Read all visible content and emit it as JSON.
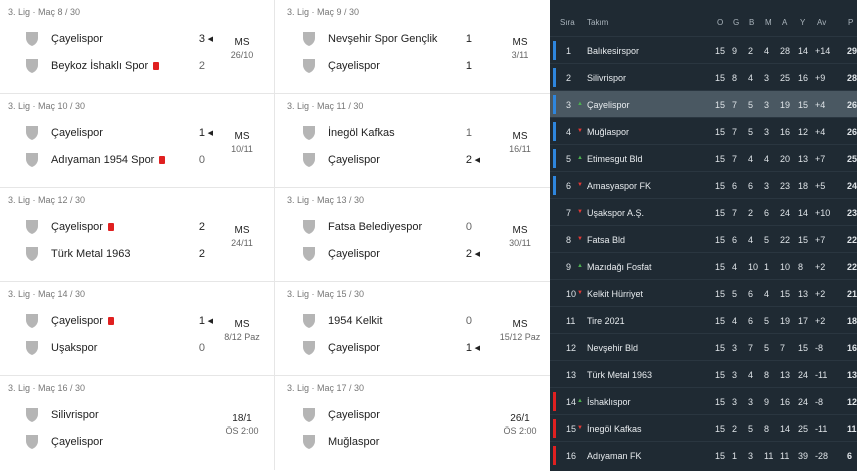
{
  "colors": {
    "standings_bg": "#1f2a33",
    "highlight_row": "#4a5862",
    "promotion": "#2e86de",
    "relegation": "#e02020",
    "up": "#4caf50",
    "down": "#e53935"
  },
  "fixtures": [
    [
      {
        "round": "3. Lig · Maç 8 / 30",
        "home": "Çayelispor",
        "home_card": false,
        "home_score": "3",
        "away": "Beykoz İshaklı Spor",
        "away_card": true,
        "away_score": "2",
        "winner": "home",
        "status": "MS",
        "date": "26/10"
      },
      {
        "round": "3. Lig · Maç 9 / 30",
        "home": "Nevşehir Spor Gençlik",
        "home_card": false,
        "home_score": "1",
        "away": "Çayelispor",
        "away_card": false,
        "away_score": "1",
        "winner": "",
        "status": "MS",
        "date": "3/11"
      }
    ],
    [
      {
        "round": "3. Lig · Maç 10 / 30",
        "home": "Çayelispor",
        "home_card": false,
        "home_score": "1",
        "away": "Adıyaman 1954 Spor",
        "away_card": true,
        "away_score": "0",
        "winner": "home",
        "status": "MS",
        "date": "10/11"
      },
      {
        "round": "3. Lig · Maç 11 / 30",
        "home": "İnegöl Kafkas",
        "home_card": false,
        "home_score": "1",
        "away": "Çayelispor",
        "away_card": false,
        "away_score": "2",
        "winner": "away",
        "status": "MS",
        "date": "16/11"
      }
    ],
    [
      {
        "round": "3. Lig · Maç 12 / 30",
        "home": "Çayelispor",
        "home_card": true,
        "home_score": "2",
        "away": "Türk Metal 1963",
        "away_card": false,
        "away_score": "2",
        "winner": "",
        "status": "MS",
        "date": "24/11"
      },
      {
        "round": "3. Lig · Maç 13 / 30",
        "home": "Fatsa Belediyespor",
        "home_card": false,
        "home_score": "0",
        "away": "Çayelispor",
        "away_card": false,
        "away_score": "2",
        "winner": "away",
        "status": "MS",
        "date": "30/11"
      }
    ],
    [
      {
        "round": "3. Lig · Maç 14 / 30",
        "home": "Çayelispor",
        "home_card": true,
        "home_score": "1",
        "away": "Uşakspor",
        "away_card": false,
        "away_score": "0",
        "winner": "home",
        "status": "MS",
        "date": "8/12 Paz"
      },
      {
        "round": "3. Lig · Maç 15 / 30",
        "home": "1954 Kelkit",
        "home_card": false,
        "home_score": "0",
        "away": "Çayelispor",
        "away_card": false,
        "away_score": "1",
        "winner": "away",
        "status": "MS",
        "date": "15/12 Paz"
      }
    ],
    [
      {
        "round": "3. Lig · Maç 16 / 30",
        "home": "Silivrispor",
        "home_card": false,
        "home_score": "",
        "away": "Çayelispor",
        "away_card": false,
        "away_score": "",
        "winner": "",
        "status": "18/1",
        "date": "ÖS 2:00"
      },
      {
        "round": "3. Lig · Maç 17 / 30",
        "home": "Çayelispor",
        "home_card": false,
        "home_score": "",
        "away": "Muğlaspor",
        "away_card": false,
        "away_score": "",
        "winner": "",
        "status": "26/1",
        "date": "ÖS 2:00"
      }
    ]
  ],
  "standings": {
    "headers": {
      "rank": "Sıra",
      "team": "Takım",
      "o": "O",
      "g": "G",
      "b": "B",
      "m": "M",
      "a": "A",
      "y": "Y",
      "av": "Av",
      "p": "P"
    },
    "rows": [
      {
        "rank": "1",
        "trend": "",
        "team": "Balıkesirspor",
        "o": "15",
        "g": "9",
        "b": "2",
        "m": "4",
        "a": "28",
        "y": "14",
        "av": "+14",
        "p": "29",
        "zone": "promotion",
        "highlight": false
      },
      {
        "rank": "2",
        "trend": "",
        "team": "Silivrispor",
        "o": "15",
        "g": "8",
        "b": "4",
        "m": "3",
        "a": "25",
        "y": "16",
        "av": "+9",
        "p": "28",
        "zone": "promotion",
        "highlight": false
      },
      {
        "rank": "3",
        "trend": "up",
        "team": "Çayelispor",
        "o": "15",
        "g": "7",
        "b": "5",
        "m": "3",
        "a": "19",
        "y": "15",
        "av": "+4",
        "p": "26",
        "zone": "promotion",
        "highlight": true
      },
      {
        "rank": "4",
        "trend": "down",
        "team": "Muğlaspor",
        "o": "15",
        "g": "7",
        "b": "5",
        "m": "3",
        "a": "16",
        "y": "12",
        "av": "+4",
        "p": "26",
        "zone": "promotion",
        "highlight": false
      },
      {
        "rank": "5",
        "trend": "up",
        "team": "Etimesgut Bld",
        "o": "15",
        "g": "7",
        "b": "4",
        "m": "4",
        "a": "20",
        "y": "13",
        "av": "+7",
        "p": "25",
        "zone": "promotion",
        "highlight": false
      },
      {
        "rank": "6",
        "trend": "down",
        "team": "Amasyaspor FK",
        "o": "15",
        "g": "6",
        "b": "6",
        "m": "3",
        "a": "23",
        "y": "18",
        "av": "+5",
        "p": "24",
        "zone": "promotion",
        "highlight": false
      },
      {
        "rank": "7",
        "trend": "down",
        "team": "Uşakspor A.Ş.",
        "o": "15",
        "g": "7",
        "b": "2",
        "m": "6",
        "a": "24",
        "y": "14",
        "av": "+10",
        "p": "23",
        "zone": "",
        "highlight": false
      },
      {
        "rank": "8",
        "trend": "down",
        "team": "Fatsa Bld",
        "o": "15",
        "g": "6",
        "b": "4",
        "m": "5",
        "a": "22",
        "y": "15",
        "av": "+7",
        "p": "22",
        "zone": "",
        "highlight": false
      },
      {
        "rank": "9",
        "trend": "up",
        "team": "Mazıdağı Fosfat",
        "o": "15",
        "g": "4",
        "b": "10",
        "m": "1",
        "a": "10",
        "y": "8",
        "av": "+2",
        "p": "22",
        "zone": "",
        "highlight": false
      },
      {
        "rank": "10",
        "trend": "down",
        "team": "Kelkit Hürriyet",
        "o": "15",
        "g": "5",
        "b": "6",
        "m": "4",
        "a": "15",
        "y": "13",
        "av": "+2",
        "p": "21",
        "zone": "",
        "highlight": false
      },
      {
        "rank": "11",
        "trend": "",
        "team": "Tire 2021",
        "o": "15",
        "g": "4",
        "b": "6",
        "m": "5",
        "a": "19",
        "y": "17",
        "av": "+2",
        "p": "18",
        "zone": "",
        "highlight": false
      },
      {
        "rank": "12",
        "trend": "",
        "team": "Nevşehir Bld",
        "o": "15",
        "g": "3",
        "b": "7",
        "m": "5",
        "a": "7",
        "y": "15",
        "av": "-8",
        "p": "16",
        "zone": "",
        "highlight": false
      },
      {
        "rank": "13",
        "trend": "",
        "team": "Türk Metal 1963",
        "o": "15",
        "g": "3",
        "b": "4",
        "m": "8",
        "a": "13",
        "y": "24",
        "av": "-11",
        "p": "13",
        "zone": "",
        "highlight": false
      },
      {
        "rank": "14",
        "trend": "up",
        "team": "İshaklıspor",
        "o": "15",
        "g": "3",
        "b": "3",
        "m": "9",
        "a": "16",
        "y": "24",
        "av": "-8",
        "p": "12",
        "zone": "relegation",
        "highlight": false
      },
      {
        "rank": "15",
        "trend": "down",
        "team": "İnegöl Kafkas",
        "o": "15",
        "g": "2",
        "b": "5",
        "m": "8",
        "a": "14",
        "y": "25",
        "av": "-11",
        "p": "11",
        "zone": "relegation",
        "highlight": false
      },
      {
        "rank": "16",
        "trend": "",
        "team": "Adıyaman FK",
        "o": "15",
        "g": "1",
        "b": "3",
        "m": "11",
        "a": "11",
        "y": "39",
        "av": "-28",
        "p": "6",
        "zone": "relegation",
        "highlight": false
      }
    ]
  }
}
